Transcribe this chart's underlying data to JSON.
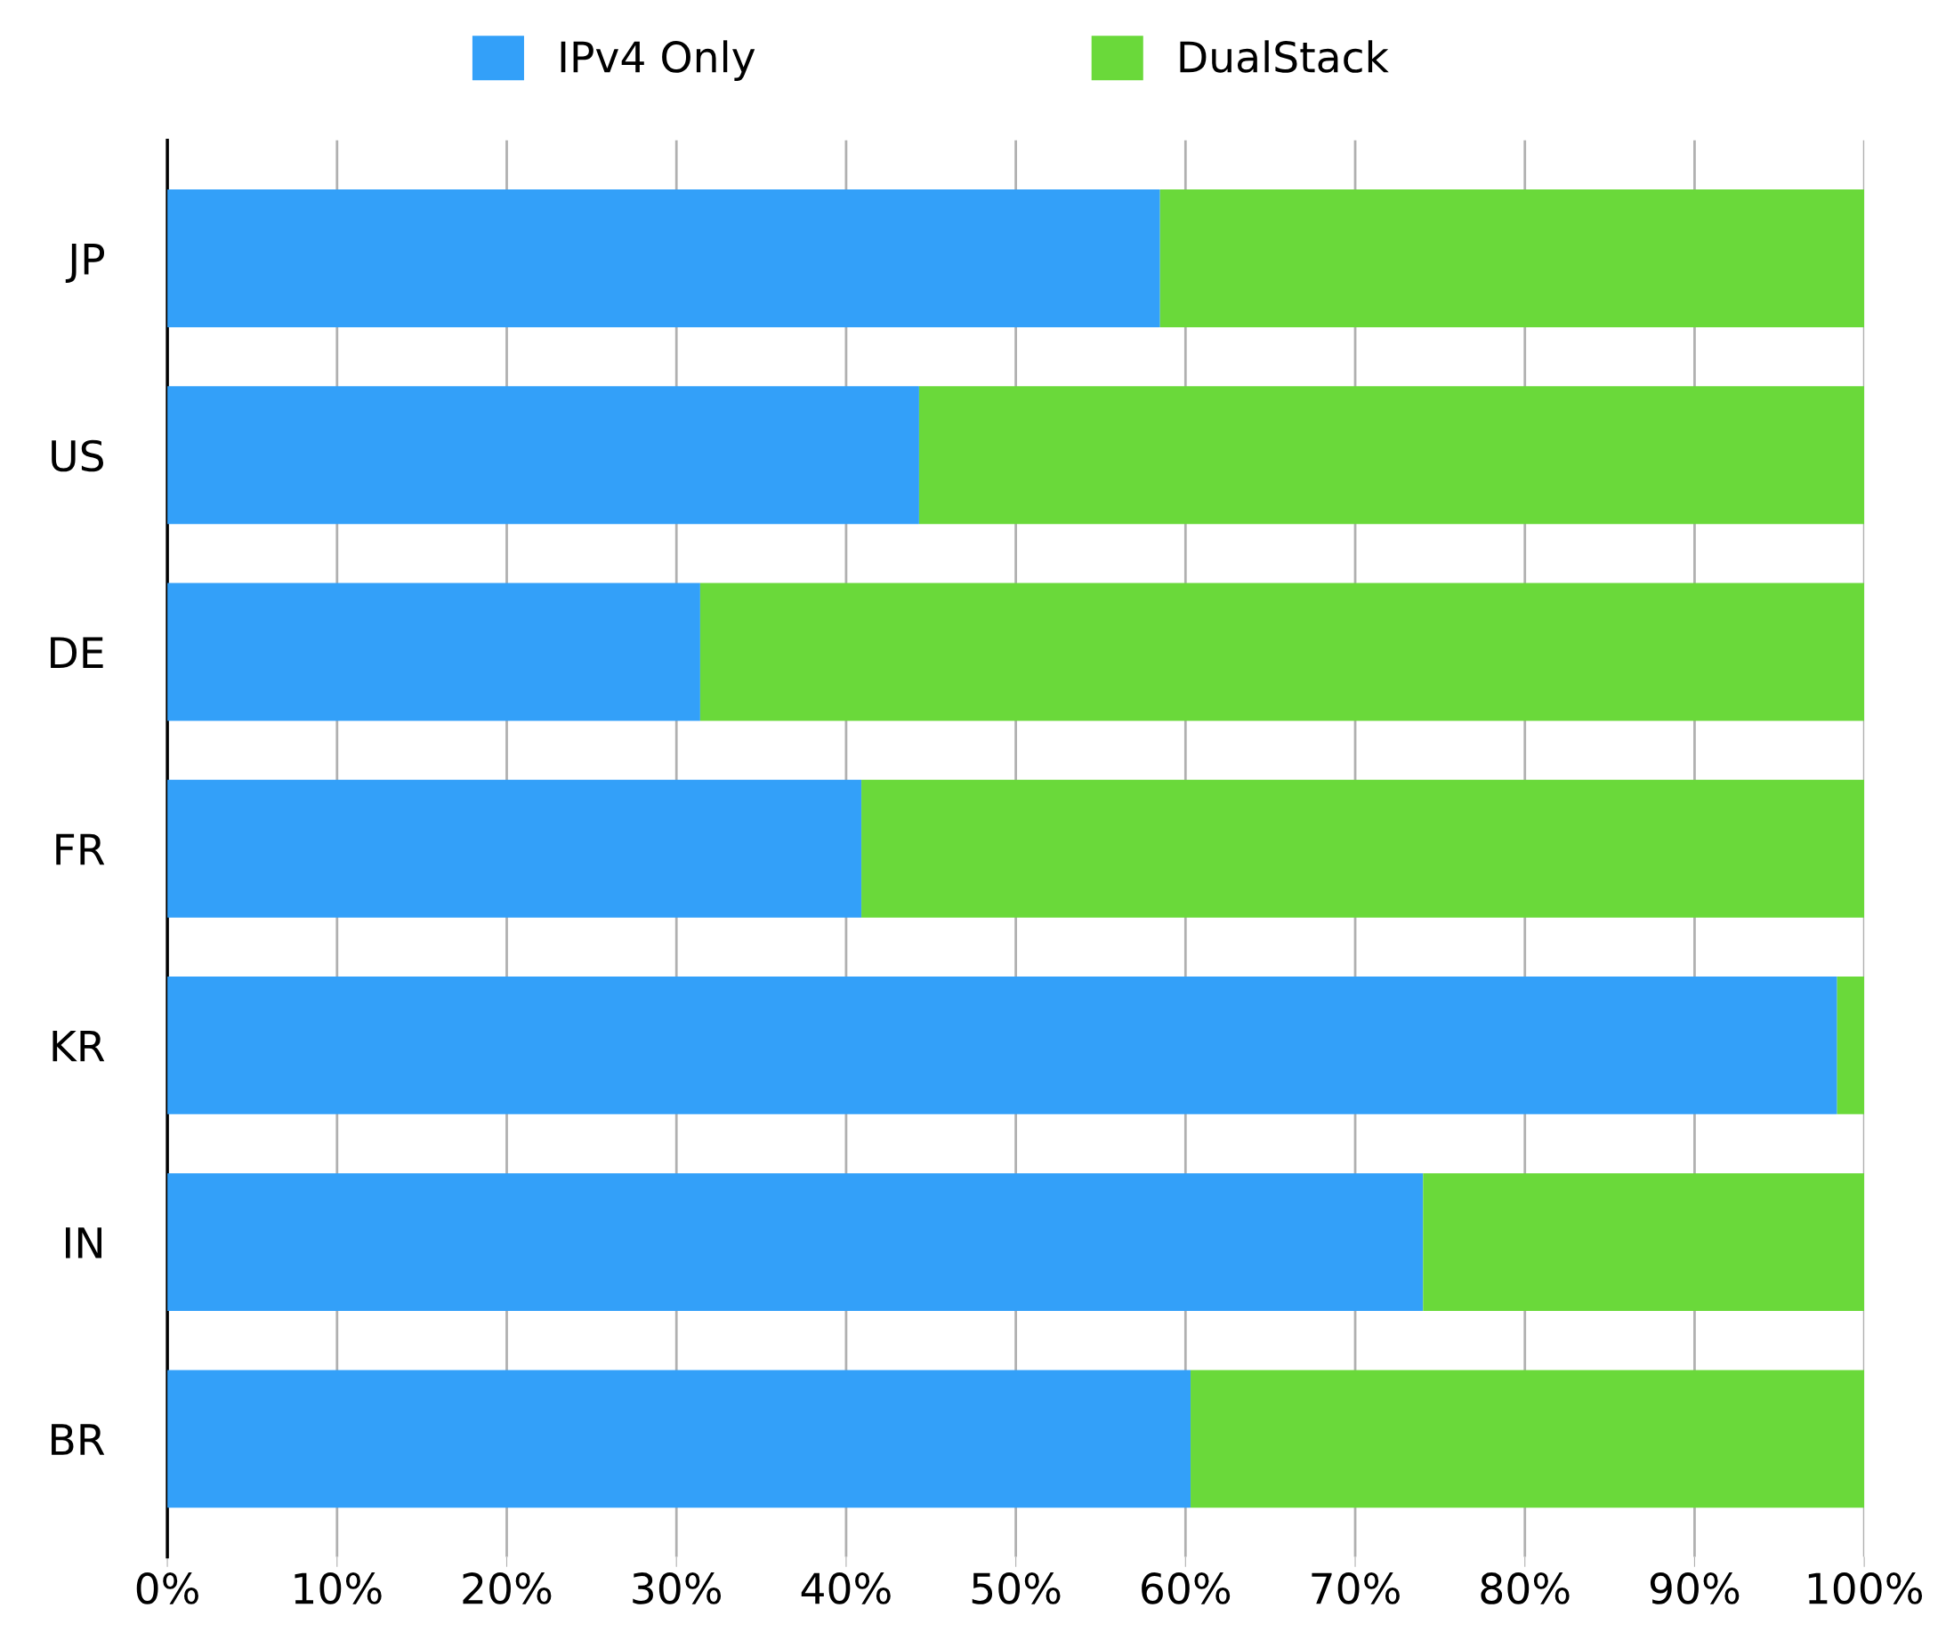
{
  "chart_data": {
    "type": "bar",
    "orientation": "horizontal",
    "stacked": true,
    "categories": [
      "JP",
      "US",
      "DE",
      "FR",
      "KR",
      "IN",
      "BR"
    ],
    "series": [
      {
        "name": "IPv4 Only",
        "color": "#33a0f9",
        "values": [
          58.5,
          44.3,
          31.4,
          40.9,
          98.4,
          74.0,
          60.3
        ]
      },
      {
        "name": "DualStack",
        "color": "#6ad93a",
        "values": [
          41.5,
          55.7,
          68.6,
          59.1,
          1.6,
          26.0,
          39.7
        ]
      }
    ],
    "xlim": [
      0,
      100
    ],
    "xticks": [
      {
        "value": 0,
        "label": "0%"
      },
      {
        "value": 10,
        "label": "10%"
      },
      {
        "value": 20,
        "label": "20%"
      },
      {
        "value": 30,
        "label": "30%"
      },
      {
        "value": 40,
        "label": "40%"
      },
      {
        "value": 50,
        "label": "50%"
      },
      {
        "value": 60,
        "label": "60%"
      },
      {
        "value": 70,
        "label": "70%"
      },
      {
        "value": 80,
        "label": "80%"
      },
      {
        "value": 90,
        "label": "90%"
      },
      {
        "value": 100,
        "label": "100%"
      }
    ],
    "grid": "x",
    "legend": "top"
  }
}
